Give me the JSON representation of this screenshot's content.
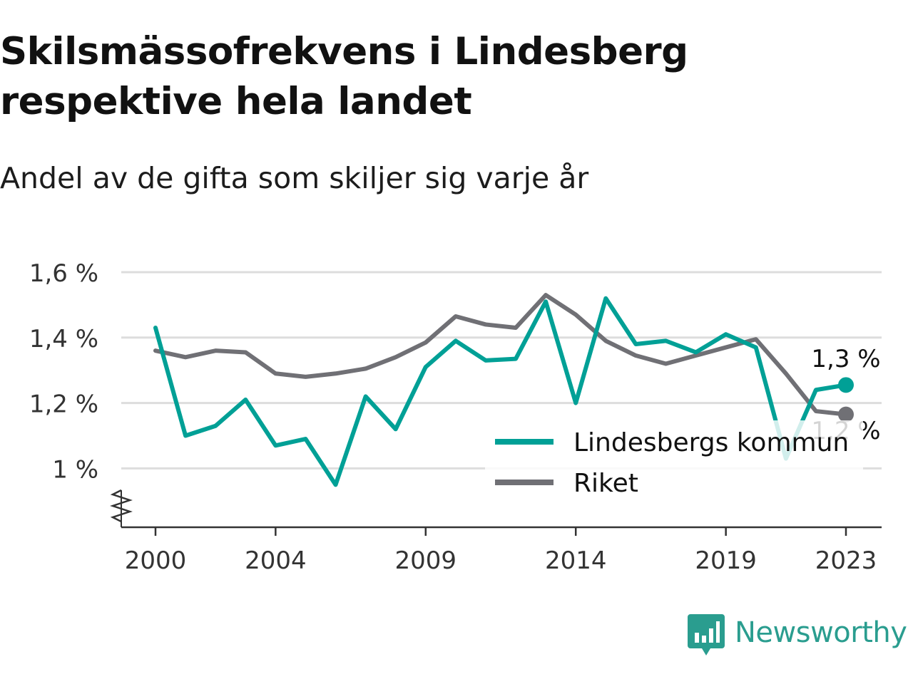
{
  "header": {
    "title": "Skilsmässofrekvens i Lindesberg respektive hela landet",
    "subtitle": "Andel av de gifta som skiljer sig varje år"
  },
  "brand": {
    "name": "Newsworthy",
    "icon": "newsworthy-logo-icon",
    "color": "#2a9d8f"
  },
  "colors": {
    "lindesberg": "#00a096",
    "riket": "#707075",
    "grid": "#dddddd",
    "axis": "#333333"
  },
  "chart_data": {
    "type": "line",
    "title": "Skilsmässofrekvens i Lindesberg respektive hela landet",
    "subtitle": "Andel av de gifta som skiljer sig varje år",
    "x": [
      2000,
      2001,
      2002,
      2003,
      2004,
      2005,
      2006,
      2007,
      2008,
      2009,
      2010,
      2011,
      2012,
      2013,
      2014,
      2015,
      2016,
      2017,
      2018,
      2019,
      2020,
      2021,
      2022,
      2023
    ],
    "x_ticks": [
      "2000",
      "2004",
      "2009",
      "2014",
      "2019",
      "2023"
    ],
    "x_tick_values": [
      2000,
      2004,
      2009,
      2014,
      2019,
      2023
    ],
    "y_ticks": [
      "1 %",
      "1,2 %",
      "1,4 %",
      "1,6 %"
    ],
    "y_tick_values": [
      1.0,
      1.2,
      1.4,
      1.6
    ],
    "ylim": [
      0.82,
      1.6
    ],
    "y_axis_broken": true,
    "grid": true,
    "legend_position": "bottom-right",
    "series": [
      {
        "name": "Lindesbergs kommun",
        "color": "#00a096",
        "end_label": "1,3 %",
        "values": [
          1.43,
          1.1,
          1.13,
          1.21,
          1.07,
          1.09,
          0.95,
          1.22,
          1.12,
          1.31,
          1.39,
          1.33,
          1.335,
          1.51,
          1.2,
          1.52,
          1.38,
          1.39,
          1.355,
          1.41,
          1.37,
          1.03,
          1.24,
          1.255
        ]
      },
      {
        "name": "Riket",
        "color": "#707075",
        "end_label": "1,2 %",
        "values": [
          1.36,
          1.34,
          1.36,
          1.355,
          1.29,
          1.28,
          1.29,
          1.305,
          1.34,
          1.385,
          1.465,
          1.44,
          1.43,
          1.53,
          1.47,
          1.39,
          1.345,
          1.32,
          1.345,
          1.37,
          1.395,
          1.29,
          1.175,
          1.165
        ]
      }
    ]
  }
}
